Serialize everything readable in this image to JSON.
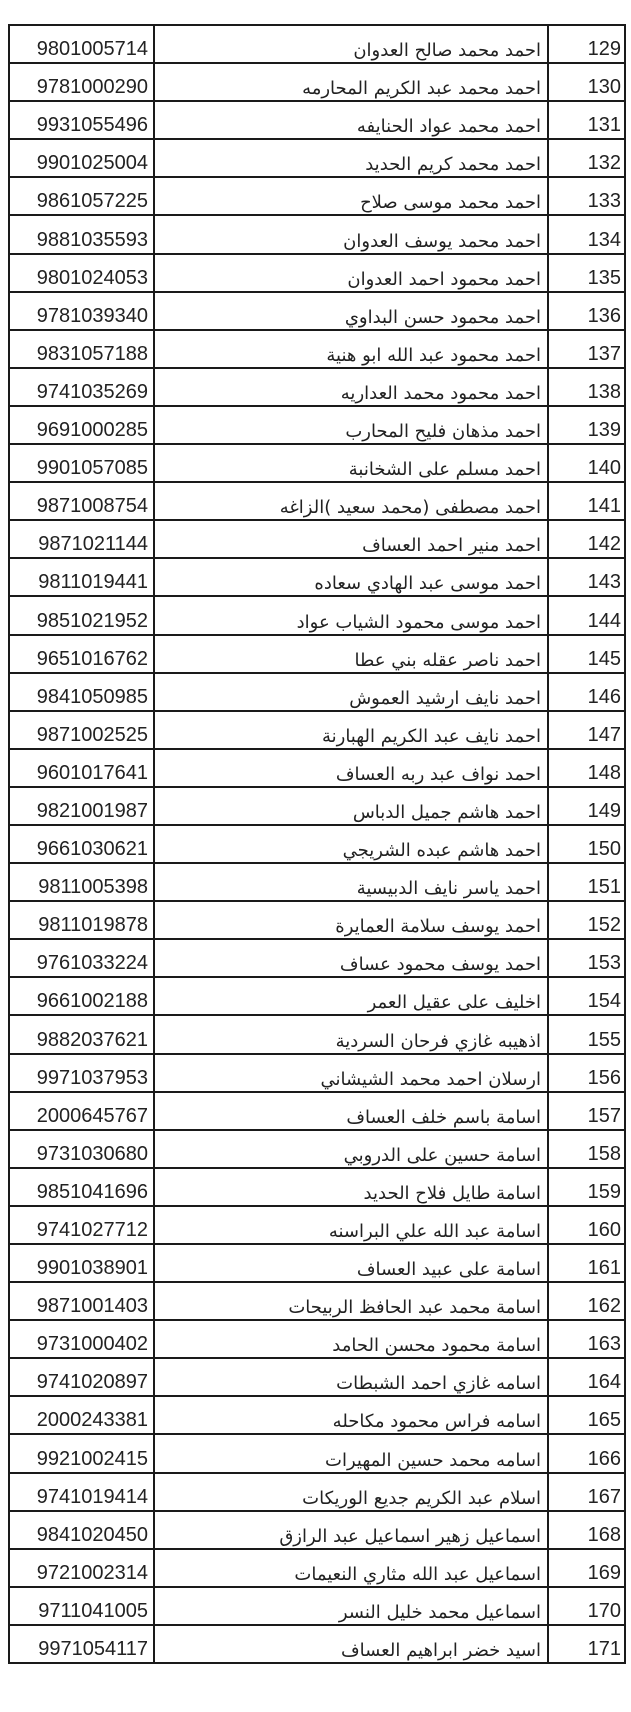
{
  "rows": [
    {
      "serial": "129",
      "name": "احمد محمد صالح العدوان",
      "national_id": "9801005714"
    },
    {
      "serial": "130",
      "name": "احمد محمد عبد الكريم المحارمه",
      "national_id": "9781000290"
    },
    {
      "serial": "131",
      "name": "احمد محمد عواد الحنايفه",
      "national_id": "9931055496"
    },
    {
      "serial": "132",
      "name": "احمد محمد كريم الحديد",
      "national_id": "9901025004"
    },
    {
      "serial": "133",
      "name": "احمد محمد موسى صلاح",
      "national_id": "9861057225"
    },
    {
      "serial": "134",
      "name": "احمد محمد يوسف العدوان",
      "national_id": "9881035593"
    },
    {
      "serial": "135",
      "name": "احمد محمود احمد العدوان",
      "national_id": "9801024053"
    },
    {
      "serial": "136",
      "name": "احمد محمود حسن البداوي",
      "national_id": "9781039340"
    },
    {
      "serial": "137",
      "name": "احمد محمود عبد الله ابو هنية",
      "national_id": "9831057188"
    },
    {
      "serial": "138",
      "name": "احمد محمود محمد العداريه",
      "national_id": "9741035269"
    },
    {
      "serial": "139",
      "name": "احمد مذهان فليح المحارب",
      "national_id": "9691000285"
    },
    {
      "serial": "140",
      "name": "احمد مسلم على الشخانبة",
      "national_id": "9901057085"
    },
    {
      "serial": "141",
      "name": "احمد مصطفى (محمد سعيد )الزاغه",
      "national_id": "9871008754"
    },
    {
      "serial": "142",
      "name": "احمد منير احمد العساف",
      "national_id": "9871021144"
    },
    {
      "serial": "143",
      "name": "احمد موسى عبد الهادي سعاده",
      "national_id": "9811019441"
    },
    {
      "serial": "144",
      "name": "احمد موسى محمود الشياب عواد",
      "national_id": "9851021952"
    },
    {
      "serial": "145",
      "name": "احمد ناصر عقله بني عطا",
      "national_id": "9651016762"
    },
    {
      "serial": "146",
      "name": "احمد نايف ارشيد العموش",
      "national_id": "9841050985"
    },
    {
      "serial": "147",
      "name": "احمد نايف عبد الكريم الهبارنة",
      "national_id": "9871002525"
    },
    {
      "serial": "148",
      "name": "احمد نواف عبد ربه العساف",
      "national_id": "9601017641"
    },
    {
      "serial": "149",
      "name": "احمد هاشم جميل الدباس",
      "national_id": "9821001987"
    },
    {
      "serial": "150",
      "name": "احمد هاشم عبده الشريجي",
      "national_id": "9661030621"
    },
    {
      "serial": "151",
      "name": "احمد ياسر نايف الدبيسية",
      "national_id": "9811005398"
    },
    {
      "serial": "152",
      "name": "احمد يوسف سلامة العمايرة",
      "national_id": "9811019878"
    },
    {
      "serial": "153",
      "name": "احمد يوسف محمود عساف",
      "national_id": "9761033224"
    },
    {
      "serial": "154",
      "name": "اخليف على عقيل العمر",
      "national_id": "9661002188"
    },
    {
      "serial": "155",
      "name": "اذهيبه غازي فرحان السردية",
      "national_id": "9882037621"
    },
    {
      "serial": "156",
      "name": "ارسلان احمد محمد الشيشاني",
      "national_id": "9971037953"
    },
    {
      "serial": "157",
      "name": "اسامة باسم خلف العساف",
      "national_id": "2000645767"
    },
    {
      "serial": "158",
      "name": "اسامة حسين على الدروبي",
      "national_id": "9731030680"
    },
    {
      "serial": "159",
      "name": "اسامة طايل فلاح الحديد",
      "national_id": "9851041696"
    },
    {
      "serial": "160",
      "name": "اسامة عبد الله علي البراسنه",
      "national_id": "9741027712"
    },
    {
      "serial": "161",
      "name": "اسامة على عبيد العساف",
      "national_id": "9901038901"
    },
    {
      "serial": "162",
      "name": "اسامة محمد عبد الحافظ الربيحات",
      "national_id": "9871001403"
    },
    {
      "serial": "163",
      "name": "اسامة محمود محسن الحامد",
      "national_id": "9731000402"
    },
    {
      "serial": "164",
      "name": "اسامه غازي احمد الشبطات",
      "national_id": "9741020897"
    },
    {
      "serial": "165",
      "name": "اسامه فراس محمود مكاحله",
      "national_id": "2000243381"
    },
    {
      "serial": "166",
      "name": "اسامه محمد حسين المهيرات",
      "national_id": "9921002415"
    },
    {
      "serial": "167",
      "name": "اسلام عبد الكريم جديع الوريكات",
      "national_id": "9741019414"
    },
    {
      "serial": "168",
      "name": "اسماعيل زهير اسماعيل عبد الرازق",
      "national_id": "9841020450"
    },
    {
      "serial": "169",
      "name": "اسماعيل عبد الله مثاري النعيمات",
      "national_id": "9721002314"
    },
    {
      "serial": "170",
      "name": "اسماعيل محمد خليل النسر",
      "national_id": "9711041005"
    },
    {
      "serial": "171",
      "name": "اسيد خضر ابراهيم العساف",
      "national_id": "9971054117"
    }
  ]
}
